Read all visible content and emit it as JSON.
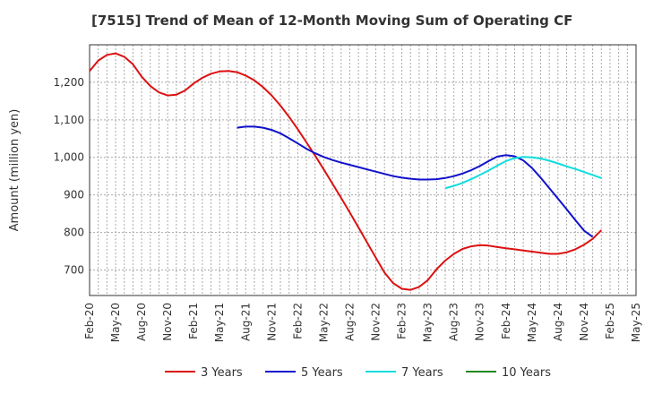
{
  "chart_data": {
    "type": "line",
    "title": "[7515]  Trend of Mean of 12-Month Moving Sum of Operating CF",
    "ylabel": "Amount (million yen)",
    "xlabel": "",
    "ylim": [
      632,
      1300
    ],
    "yticks": [
      700,
      800,
      900,
      1000,
      1100,
      1200
    ],
    "ytick_labels": [
      "700",
      "800",
      "900",
      "1,000",
      "1,100",
      "1,200"
    ],
    "x_start": "Feb-20",
    "x_end": "May-25",
    "x_ticks": [
      "Feb-20",
      "May-20",
      "Aug-20",
      "Nov-20",
      "Feb-21",
      "May-21",
      "Aug-21",
      "Nov-21",
      "Feb-22",
      "May-22",
      "Aug-22",
      "Nov-22",
      "Feb-23",
      "May-23",
      "Aug-23",
      "Nov-23",
      "Feb-24",
      "May-24",
      "Aug-24",
      "Nov-24",
      "Feb-25",
      "May-25"
    ],
    "grid": true,
    "legend_position": "bottom",
    "series": [
      {
        "name": "3 Years",
        "color": "#dd1111",
        "points": [
          [
            "Feb-20",
            1230
          ],
          [
            "Mar-20",
            1258
          ],
          [
            "Apr-20",
            1273
          ],
          [
            "May-20",
            1277
          ],
          [
            "Jun-20",
            1268
          ],
          [
            "Jul-20",
            1248
          ],
          [
            "Aug-20",
            1215
          ],
          [
            "Sep-20",
            1190
          ],
          [
            "Oct-20",
            1173
          ],
          [
            "Nov-20",
            1165
          ],
          [
            "Dec-20",
            1167
          ],
          [
            "Jan-21",
            1178
          ],
          [
            "Feb-21",
            1197
          ],
          [
            "Mar-21",
            1212
          ],
          [
            "Apr-21",
            1223
          ],
          [
            "May-21",
            1229
          ],
          [
            "Jun-21",
            1230
          ],
          [
            "Jul-21",
            1227
          ],
          [
            "Aug-21",
            1218
          ],
          [
            "Sep-21",
            1205
          ],
          [
            "Oct-21",
            1187
          ],
          [
            "Nov-21",
            1165
          ],
          [
            "Dec-21",
            1138
          ],
          [
            "Jan-22",
            1108
          ],
          [
            "Feb-22",
            1075
          ],
          [
            "Mar-22",
            1040
          ],
          [
            "Apr-22",
            1005
          ],
          [
            "May-22",
            968
          ],
          [
            "Jun-22",
            930
          ],
          [
            "Jul-22",
            892
          ],
          [
            "Aug-22",
            853
          ],
          [
            "Sep-22",
            813
          ],
          [
            "Oct-22",
            773
          ],
          [
            "Nov-22",
            733
          ],
          [
            "Dec-22",
            693
          ],
          [
            "Jan-23",
            665
          ],
          [
            "Feb-23",
            650
          ],
          [
            "Mar-23",
            647
          ],
          [
            "Apr-23",
            655
          ],
          [
            "May-23",
            673
          ],
          [
            "Jun-23",
            702
          ],
          [
            "Jul-23",
            725
          ],
          [
            "Aug-23",
            743
          ],
          [
            "Sep-23",
            756
          ],
          [
            "Oct-23",
            763
          ],
          [
            "Nov-23",
            766
          ],
          [
            "Dec-23",
            765
          ],
          [
            "Jan-24",
            761
          ],
          [
            "Feb-24",
            758
          ],
          [
            "Mar-24",
            755
          ],
          [
            "Apr-24",
            752
          ],
          [
            "May-24",
            749
          ],
          [
            "Jun-24",
            746
          ],
          [
            "Jul-24",
            743
          ],
          [
            "Aug-24",
            743
          ],
          [
            "Sep-24",
            747
          ],
          [
            "Oct-24",
            755
          ],
          [
            "Nov-24",
            767
          ],
          [
            "Dec-24",
            783
          ],
          [
            "Jan-25",
            806
          ]
        ]
      },
      {
        "name": "5 Years",
        "color": "#1111cc",
        "points": [
          [
            "Jul-21",
            1079
          ],
          [
            "Aug-21",
            1082
          ],
          [
            "Sep-21",
            1082
          ],
          [
            "Oct-21",
            1079
          ],
          [
            "Nov-21",
            1073
          ],
          [
            "Dec-21",
            1064
          ],
          [
            "Jan-22",
            1051
          ],
          [
            "Feb-22",
            1037
          ],
          [
            "Mar-22",
            1023
          ],
          [
            "Apr-22",
            1011
          ],
          [
            "May-22",
            1001
          ],
          [
            "Jun-22",
            993
          ],
          [
            "Jul-22",
            986
          ],
          [
            "Aug-22",
            980
          ],
          [
            "Sep-22",
            974
          ],
          [
            "Oct-22",
            968
          ],
          [
            "Nov-22",
            962
          ],
          [
            "Dec-22",
            956
          ],
          [
            "Jan-23",
            950
          ],
          [
            "Feb-23",
            946
          ],
          [
            "Mar-23",
            943
          ],
          [
            "Apr-23",
            941
          ],
          [
            "May-23",
            941
          ],
          [
            "Jun-23",
            942
          ],
          [
            "Jul-23",
            945
          ],
          [
            "Aug-23",
            950
          ],
          [
            "Sep-23",
            957
          ],
          [
            "Oct-23",
            966
          ],
          [
            "Nov-23",
            977
          ],
          [
            "Dec-23",
            990
          ],
          [
            "Jan-24",
            1002
          ],
          [
            "Feb-24",
            1006
          ],
          [
            "Mar-24",
            1003
          ],
          [
            "Apr-24",
            992
          ],
          [
            "May-24",
            972
          ],
          [
            "Jun-24",
            946
          ],
          [
            "Jul-24",
            918
          ],
          [
            "Aug-24",
            890
          ],
          [
            "Sep-24",
            862
          ],
          [
            "Oct-24",
            833
          ],
          [
            "Nov-24",
            805
          ],
          [
            "Dec-24",
            788
          ]
        ]
      },
      {
        "name": "7 Years",
        "color": "#11dddd",
        "points": [
          [
            "Jul-23",
            918
          ],
          [
            "Aug-23",
            924
          ],
          [
            "Sep-23",
            932
          ],
          [
            "Oct-23",
            942
          ],
          [
            "Nov-23",
            953
          ],
          [
            "Dec-23",
            965
          ],
          [
            "Jan-24",
            978
          ],
          [
            "Feb-24",
            990
          ],
          [
            "Mar-24",
            998
          ],
          [
            "Apr-24",
            1001
          ],
          [
            "May-24",
            1000
          ],
          [
            "Jun-24",
            997
          ],
          [
            "Jul-24",
            991
          ],
          [
            "Aug-24",
            984
          ],
          [
            "Sep-24",
            976
          ],
          [
            "Oct-24",
            969
          ],
          [
            "Nov-24",
            961
          ],
          [
            "Dec-24",
            953
          ],
          [
            "Jan-25",
            945
          ]
        ]
      },
      {
        "name": "10 Years",
        "color": "#228822",
        "points": []
      }
    ]
  }
}
